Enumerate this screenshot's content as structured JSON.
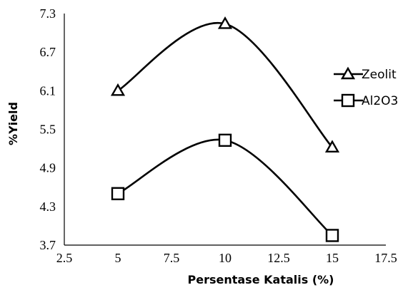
{
  "chart_data": {
    "type": "line",
    "title": "",
    "xlabel": "Persentase Katalis (%)",
    "ylabel": "%Yield",
    "xlim": [
      2.5,
      17.5
    ],
    "ylim": [
      3.7,
      7.3
    ],
    "x_ticks": [
      2.5,
      5,
      7.5,
      10,
      12.5,
      15,
      17.5
    ],
    "x_tick_labels": [
      "2.5",
      "5",
      "7.5",
      "10",
      "12.5",
      "15",
      "17.5"
    ],
    "y_ticks": [
      3.7,
      4.3,
      4.9,
      5.5,
      6.1,
      6.7,
      7.3
    ],
    "y_tick_labels": [
      "3.7",
      "4.3",
      "4.9",
      "5.5",
      "6.1",
      "6.7",
      "7.3"
    ],
    "grid": false,
    "smooth": true,
    "legend_position": "right",
    "series": [
      {
        "name": "Zeolit",
        "marker": "triangle",
        "x": [
          5,
          10,
          15
        ],
        "y": [
          6.1,
          7.14,
          5.22
        ]
      },
      {
        "name": "Al2O3",
        "marker": "square",
        "x": [
          5,
          10,
          15
        ],
        "y": [
          4.5,
          5.33,
          3.85
        ]
      }
    ]
  }
}
